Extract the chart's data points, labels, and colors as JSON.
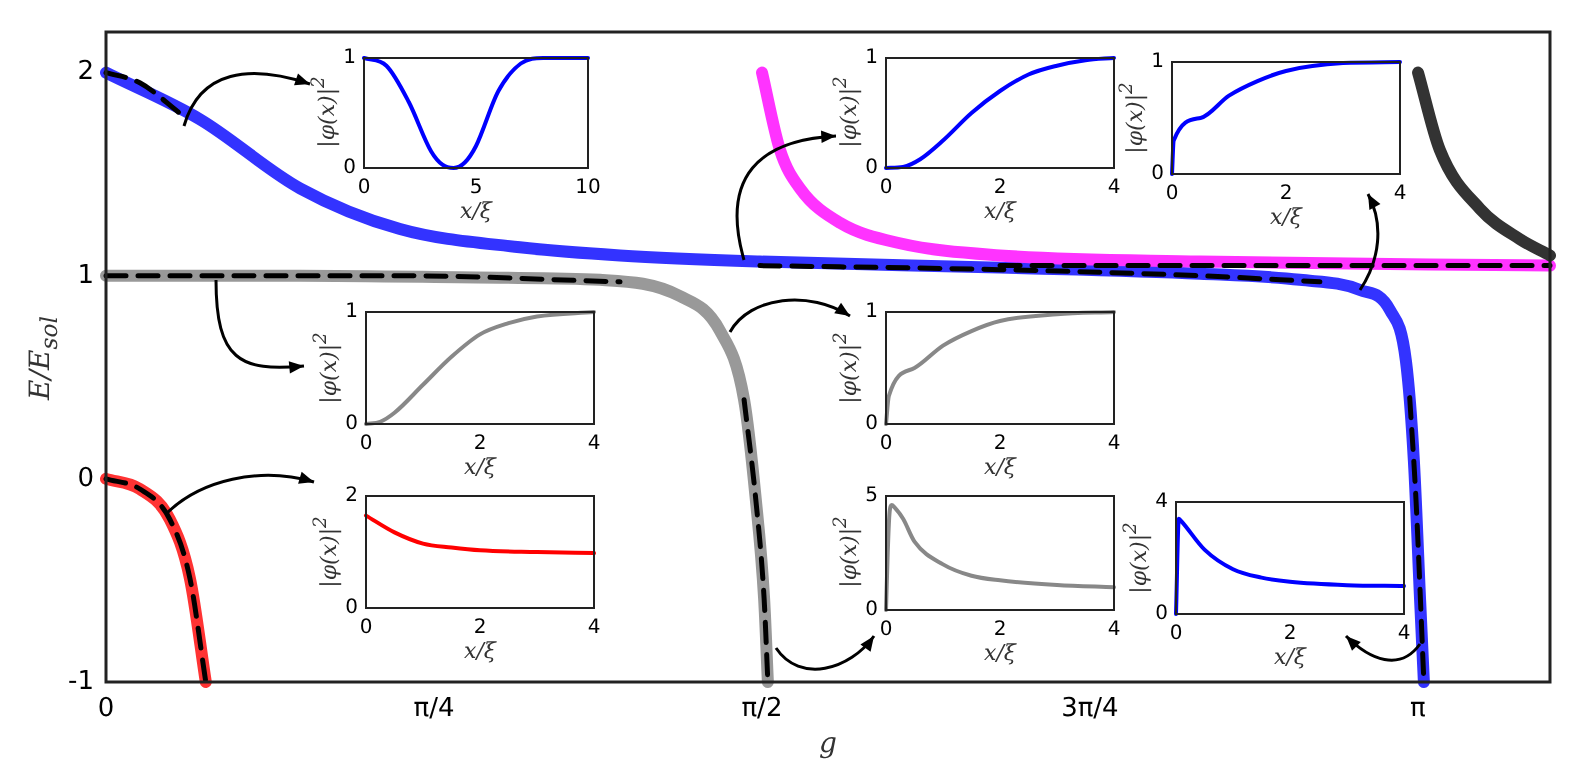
{
  "chart_data": [
    {
      "type": "line",
      "xlabel": "g",
      "ylabel": "E/E$_{sol}$",
      "xlim": [
        0,
        3.458
      ],
      "ylim": [
        -1,
        2.2
      ],
      "xticks": [
        0,
        {
          "value": 0.7854,
          "label": "π/4"
        },
        {
          "value": 1.5708,
          "label": "π/2"
        },
        {
          "value": 2.3562,
          "label": "3π/4"
        },
        {
          "value": 3.1416,
          "label": "π"
        }
      ],
      "yticks": [
        -1,
        0,
        1,
        2
      ],
      "marker": "none",
      "series": [
        {
          "color": "#3333ff",
          "x": [
            0,
            0.225,
            0.465,
            0.704,
            0.991,
            1.231,
            1.566,
            2.141,
            2.62,
            2.859,
            3.003,
            3.075,
            3.113,
            3.132,
            3.147,
            3.156
          ],
          "values": [
            2,
            1.77,
            1.43,
            1.23,
            1.14,
            1.1,
            1.07,
            1.04,
            1.01,
            0.98,
            0.93,
            0.83,
            0.58,
            0.09,
            -0.6,
            -1
          ]
        },
        {
          "color": "#999999",
          "x": [
            0,
            0.465,
            0.943,
            1.183,
            1.374,
            1.47,
            1.528,
            1.556,
            1.576,
            1.585
          ],
          "values": [
            1,
            1,
            0.99,
            0.98,
            0.9,
            0.73,
            0.39,
            -0.1,
            -0.59,
            -1
          ]
        },
        {
          "color": "#ff3333",
          "x": [
            0,
            0.081,
            0.153,
            0.201,
            0.239
          ],
          "values": [
            0,
            -0.05,
            -0.2,
            -0.49,
            -1
          ]
        },
        {
          "color": "#ff33ff",
          "x": [
            1.571,
            1.614,
            1.662,
            1.758,
            1.901,
            2.141,
            2.62,
            3.458
          ],
          "values": [
            2,
            1.62,
            1.43,
            1.26,
            1.16,
            1.1,
            1.07,
            1.05
          ]
        },
        {
          "color": "#333333",
          "x": [
            3.142,
            3.194,
            3.29,
            3.386,
            3.458
          ],
          "values": [
            2,
            1.62,
            1.33,
            1.18,
            1.1
          ]
        },
        {
          "color": "#000000",
          "line_style": "dashed",
          "x": [
            0,
            0.081,
            0.177
          ],
          "values": [
            2,
            1.95,
            1.8
          ]
        },
        {
          "color": "#000000",
          "line_style": "dashed",
          "x": [
            0,
            0.704,
            1.231
          ],
          "values": [
            1,
            1,
            0.97
          ]
        },
        {
          "color": "#000000",
          "line_style": "dashed",
          "x": [
            1.528,
            1.556,
            1.576,
            1.585
          ],
          "values": [
            0.39,
            -0.1,
            -0.59,
            -1
          ]
        },
        {
          "color": "#000000",
          "line_style": "dashed",
          "x": [
            0,
            0.081,
            0.153,
            0.201,
            0.239
          ],
          "values": [
            0,
            -0.05,
            -0.2,
            -0.49,
            -1
          ]
        },
        {
          "color": "#000000",
          "line_style": "dashed",
          "x": [
            1.566,
            2.141,
            2.62,
            2.907
          ],
          "values": [
            1.05,
            1.03,
            1,
            0.97
          ]
        },
        {
          "color": "#000000",
          "line_style": "dashed",
          "x": [
            3.122,
            3.137,
            3.156
          ],
          "values": [
            0.4,
            -0.1,
            -1
          ]
        },
        {
          "color": "#000000",
          "line_style": "dashed",
          "x": [
            2.141,
            2.62,
            3.458
          ],
          "values": [
            1.05,
            1.05,
            1.05
          ]
        }
      ]
    },
    {
      "type": "line",
      "xlabel": "x/ξ",
      "ylabel": "|φ(x)|$^{2}$",
      "xlim": [
        0,
        10
      ],
      "ylim": [
        0,
        1
      ],
      "xticks": [
        0,
        5,
        10
      ],
      "yticks": [
        0,
        1
      ],
      "marker": "none",
      "series": [
        {
          "color": "#0000ff",
          "x": [
            0,
            1,
            2,
            3,
            3.5,
            4,
            4.5,
            5,
            6,
            7,
            8,
            10
          ],
          "values": [
            1,
            0.93,
            0.6,
            0.15,
            0.03,
            0,
            0.05,
            0.2,
            0.7,
            0.95,
            1,
            1
          ]
        }
      ]
    },
    {
      "type": "line",
      "xlabel": "x/ξ",
      "ylabel": "|φ(x)|$^{2}$",
      "xlim": [
        0,
        4
      ],
      "ylim": [
        0,
        1
      ],
      "xticks": [
        0,
        2,
        4
      ],
      "yticks": [
        0,
        1
      ],
      "marker": "none",
      "series": [
        {
          "color": "#0000ff",
          "x": [
            0,
            0.3,
            0.6,
            1,
            1.5,
            2,
            2.5,
            3,
            3.5,
            4
          ],
          "values": [
            0,
            0.01,
            0.08,
            0.25,
            0.5,
            0.7,
            0.85,
            0.93,
            0.98,
            1
          ]
        }
      ]
    },
    {
      "type": "line",
      "xlabel": "x/ξ",
      "ylabel": "|φ(x)|$^{2}$",
      "xlim": [
        0,
        4
      ],
      "ylim": [
        0,
        1
      ],
      "xticks": [
        0,
        2,
        4
      ],
      "yticks": [
        0,
        1
      ],
      "marker": "none",
      "series": [
        {
          "color": "#0000ff",
          "x": [
            0,
            0.03,
            0.5,
            1,
            1.5,
            2,
            3,
            4
          ],
          "values": [
            0,
            0.3,
            0.5,
            0.7,
            0.83,
            0.92,
            0.99,
            1
          ]
        }
      ]
    },
    {
      "type": "line",
      "xlabel": "x/ξ",
      "ylabel": "|φ(x)|$^{2}$",
      "xlim": [
        0,
        4
      ],
      "ylim": [
        0,
        1
      ],
      "xticks": [
        0,
        2,
        4
      ],
      "yticks": [
        0,
        1
      ],
      "marker": "none",
      "series": [
        {
          "color": "#888888",
          "x": [
            0,
            0.25,
            0.5,
            1,
            1.5,
            2,
            2.5,
            3,
            4
          ],
          "values": [
            0,
            0.02,
            0.1,
            0.35,
            0.6,
            0.8,
            0.9,
            0.96,
            1
          ]
        }
      ]
    },
    {
      "type": "line",
      "xlabel": "x/ξ",
      "ylabel": "|φ(x)|$^{2}$",
      "xlim": [
        0,
        4
      ],
      "ylim": [
        0,
        1
      ],
      "xticks": [
        0,
        2,
        4
      ],
      "yticks": [
        0,
        1
      ],
      "marker": "none",
      "series": [
        {
          "color": "#888888",
          "x": [
            0,
            0.05,
            0.5,
            1,
            1.5,
            2,
            3,
            4
          ],
          "values": [
            0,
            0.25,
            0.5,
            0.7,
            0.83,
            0.92,
            0.98,
            1
          ]
        }
      ]
    },
    {
      "type": "line",
      "xlabel": "x/ξ",
      "ylabel": "|φ(x)|$^{2}$",
      "xlim": [
        0,
        4
      ],
      "ylim": [
        0,
        2
      ],
      "xticks": [
        0,
        2,
        4
      ],
      "yticks": [
        0,
        2
      ],
      "marker": "none",
      "series": [
        {
          "color": "#ff0000",
          "x": [
            0,
            0.5,
            1,
            1.5,
            2,
            3,
            4
          ],
          "values": [
            1.65,
            1.35,
            1.15,
            1.08,
            1.03,
            1,
            0.98
          ]
        }
      ]
    },
    {
      "type": "line",
      "xlabel": "x/ξ",
      "ylabel": "|φ(x)|$^{2}$",
      "xlim": [
        0,
        4
      ],
      "ylim": [
        0,
        5
      ],
      "xticks": [
        0,
        2,
        4
      ],
      "yticks": [
        0,
        5
      ],
      "marker": "none",
      "series": [
        {
          "color": "#888888",
          "x": [
            0,
            0.03,
            0.06,
            0.1,
            0.15,
            0.3,
            0.5,
            1,
            1.5,
            2,
            3,
            4
          ],
          "values": [
            0,
            2.5,
            4.2,
            4.6,
            4.5,
            4,
            3,
            2,
            1.5,
            1.3,
            1.1,
            1
          ]
        }
      ]
    },
    {
      "type": "line",
      "xlabel": "x/ξ",
      "ylabel": "|φ(x)|$^{2}$",
      "xlim": [
        0,
        4
      ],
      "ylim": [
        0,
        4
      ],
      "xticks": [
        0,
        2,
        4
      ],
      "yticks": [
        0,
        4
      ],
      "marker": "none",
      "series": [
        {
          "color": "#0000ff",
          "x": [
            0,
            0.05,
            0.1,
            0.5,
            1,
            1.5,
            2,
            3,
            4
          ],
          "values": [
            0,
            3.4,
            3.3,
            2.3,
            1.6,
            1.3,
            1.15,
            1.03,
            1
          ]
        }
      ]
    }
  ]
}
